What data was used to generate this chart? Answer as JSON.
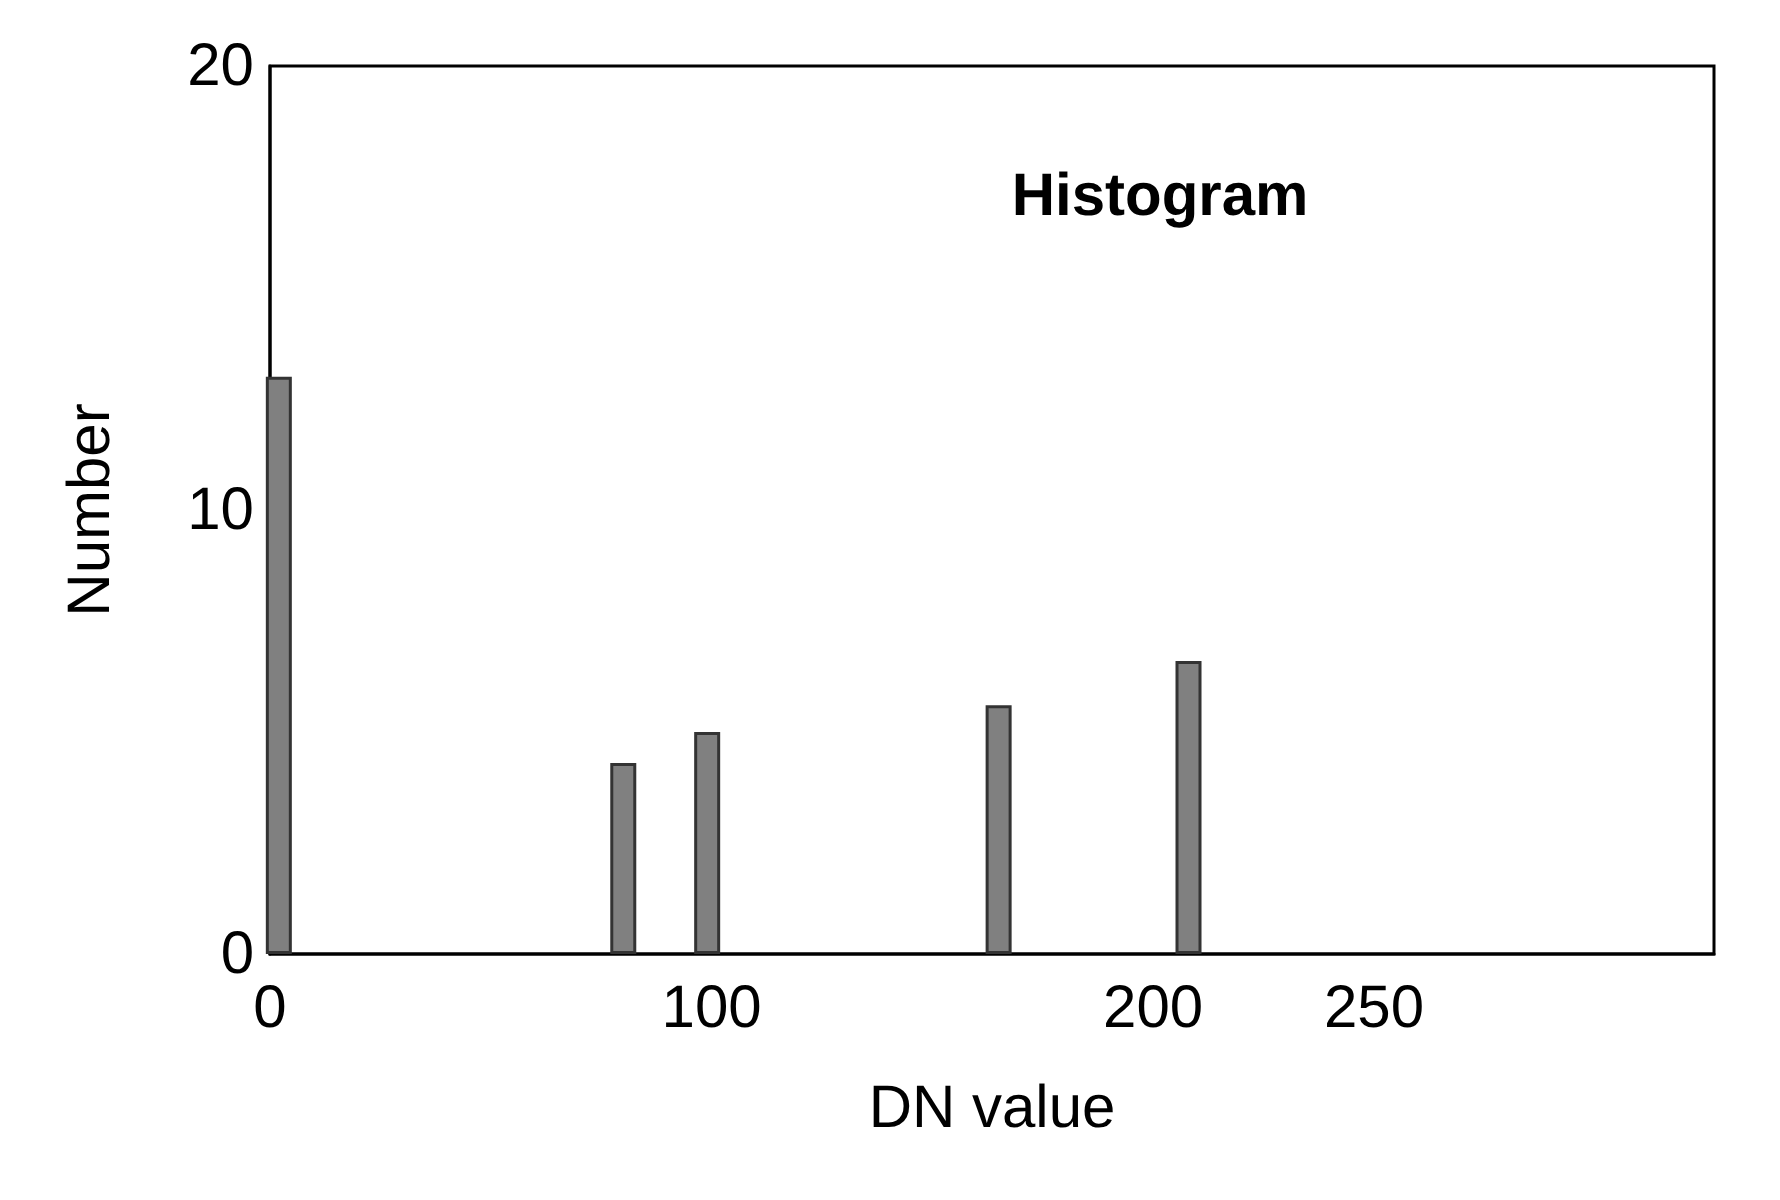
{
  "chart_data": {
    "type": "bar",
    "title": "Histogram",
    "xlabel": "DN value",
    "ylabel": "Number",
    "x": [
      2,
      80,
      99,
      165,
      208
    ],
    "values": [
      13,
      4.3,
      5,
      5.6,
      6.6
    ],
    "color": "#808080",
    "xlim": [
      0,
      327
    ],
    "xticks": [
      0,
      100,
      200,
      250
    ],
    "ylim": [
      0,
      20
    ],
    "yticks": [
      0,
      10,
      20
    ]
  }
}
